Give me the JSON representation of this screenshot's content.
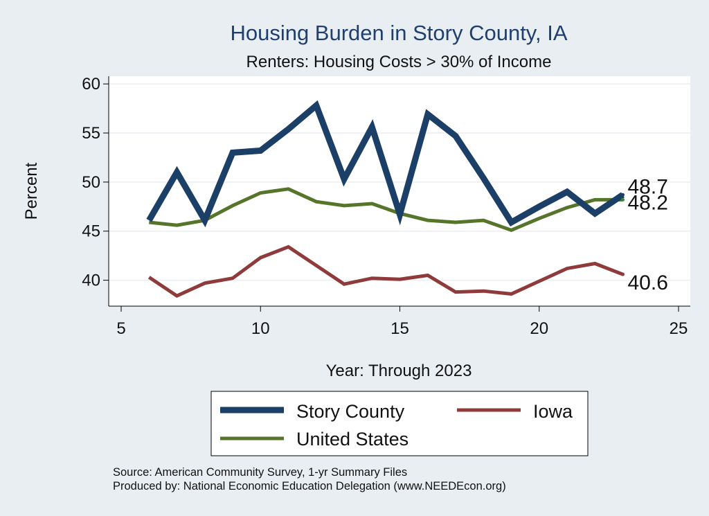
{
  "chart_data": {
    "type": "line",
    "title": "Housing Burden in Story County, IA",
    "subtitle": "Renters: Housing Costs > 30% of Income",
    "xlabel": "Year: Through 2023",
    "ylabel": "Percent",
    "xlim": [
      5,
      25
    ],
    "ylim": [
      37.5,
      61
    ],
    "x_ticks": [
      "5",
      "10",
      "15",
      "20",
      "25"
    ],
    "y_ticks": [
      "40",
      "45",
      "50",
      "55",
      "60"
    ],
    "grid": true,
    "legend_position": "bottom",
    "x": [
      6,
      7,
      8,
      9,
      10,
      11,
      12,
      13,
      14,
      15,
      16,
      17,
      18,
      19,
      20,
      21,
      22,
      23
    ],
    "series": [
      {
        "name": "Story County",
        "color": "#1b3f66",
        "end_label": "48.7",
        "values": [
          46.1,
          51.0,
          46.1,
          53.0,
          53.2,
          55.4,
          57.8,
          50.3,
          55.6,
          46.7,
          56.9,
          54.7,
          50.4,
          45.9,
          47.5,
          49.0,
          46.8,
          48.7
        ]
      },
      {
        "name": "Iowa",
        "color": "#8f3b3c",
        "end_label": "40.6",
        "values": [
          40.3,
          38.4,
          39.7,
          40.2,
          42.3,
          43.4,
          41.5,
          39.6,
          40.2,
          40.1,
          40.5,
          38.8,
          38.9,
          38.6,
          39.9,
          41.2,
          41.7,
          40.6
        ]
      },
      {
        "name": "United States",
        "color": "#56752b",
        "end_label": "48.2",
        "values": [
          45.9,
          45.6,
          46.1,
          47.6,
          48.9,
          49.3,
          48.0,
          47.6,
          47.8,
          46.8,
          46.1,
          45.9,
          46.1,
          45.1,
          46.3,
          47.4,
          48.2,
          48.2
        ]
      }
    ]
  },
  "notes": {
    "source": "Source: American Community Survey, 1-yr Summary Files",
    "produced_by": "Produced by: National Economic Education Delegation (www.NEEDEcon.org)"
  }
}
